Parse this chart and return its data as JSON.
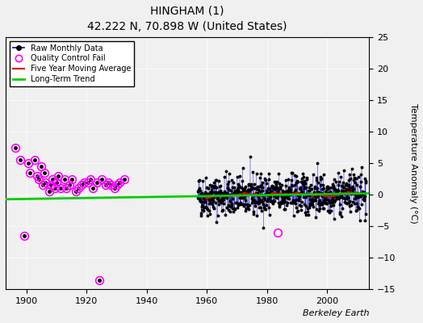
{
  "title": "HINGHAM (1)",
  "subtitle": "42.222 N, 70.898 W (United States)",
  "ylabel": "Temperature Anomaly (°C)",
  "watermark": "Berkeley Earth",
  "xlim": [
    1893,
    2014
  ],
  "ylim": [
    -15,
    25
  ],
  "yticks": [
    -15,
    -10,
    -5,
    0,
    5,
    10,
    15,
    20,
    25
  ],
  "xticks": [
    1900,
    1920,
    1940,
    1960,
    1980,
    2000
  ],
  "raw_color": "#0000dd",
  "qc_color": "#ff00ff",
  "moving_avg_color": "#dd0000",
  "trend_color": "#00cc00",
  "background_color": "#f0f0f0",
  "legend_labels": [
    "Raw Monthly Data",
    "Quality Control Fail",
    "Five Year Moving Average",
    "Long-Term Trend"
  ],
  "seed": 42
}
